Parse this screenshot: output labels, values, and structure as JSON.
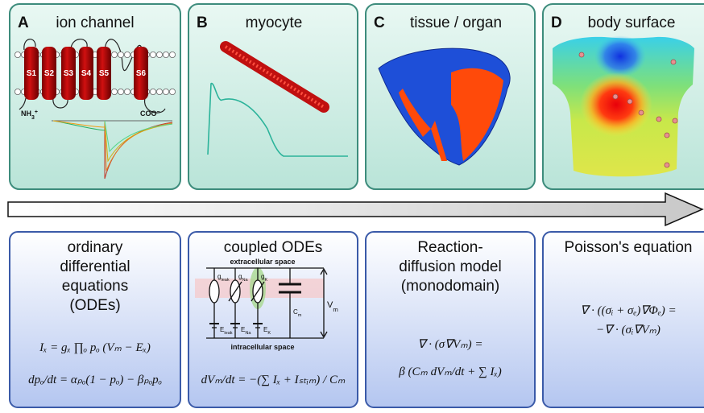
{
  "panels": [
    {
      "letter": "A",
      "title": "ion channel"
    },
    {
      "letter": "B",
      "title": "myocyte"
    },
    {
      "letter": "C",
      "title": "tissue / organ"
    },
    {
      "letter": "D",
      "title": "body surface"
    }
  ],
  "ion_channel": {
    "segments": [
      "S1",
      "S2",
      "S3",
      "S4",
      "S5",
      "S6"
    ],
    "n_terminus": {
      "base": "NH",
      "sub": "3",
      "sup": "+"
    },
    "c_terminus": {
      "base": "COO",
      "sup": "−"
    }
  },
  "models": [
    {
      "title_lines": [
        "ordinary",
        "differential",
        "equations",
        "(ODEs)"
      ],
      "equations": [
        "Iₓ = gₓ ∏ₒ pₒ (Vₘ − Eₓ)",
        "dpₒ/dt = αₚₒ(1 − pₒ) − βₚₒpₒ"
      ]
    },
    {
      "title_lines": [
        "coupled ODEs"
      ],
      "circuit": {
        "top": "extracellular space",
        "bottom": "intracellular space",
        "conductances": [
          {
            "base": "g",
            "sub": "leak"
          },
          {
            "base": "g",
            "sub": "Na"
          },
          {
            "base": "g",
            "sub": "K"
          }
        ],
        "reversals": [
          {
            "base": "E",
            "sub": "leak"
          },
          {
            "base": "E",
            "sub": "Na"
          },
          {
            "base": "E",
            "sub": "K"
          }
        ],
        "capacitance": {
          "base": "C",
          "sub": "m"
        },
        "voltage": {
          "base": "V",
          "sub": "m"
        }
      },
      "equations": [
        "dVₘ/dt = −(∑ Iₓ + Iₛₜᵢₘ) / Cₘ"
      ]
    },
    {
      "title_lines": [
        "Reaction-",
        "diffusion model",
        "(monodomain)"
      ],
      "equations": [
        "∇ · (σ∇Vₘ) =",
        "β (Cₘ dVₘ/dt + ∑ Iₓ)"
      ]
    },
    {
      "title_lines": [
        "Poisson's equation"
      ],
      "equations": [
        "∇ · ((σᵢ + σₑ)∇Φₑ) =",
        "−∇ · (σᵢ∇Vₘ)"
      ]
    }
  ]
}
